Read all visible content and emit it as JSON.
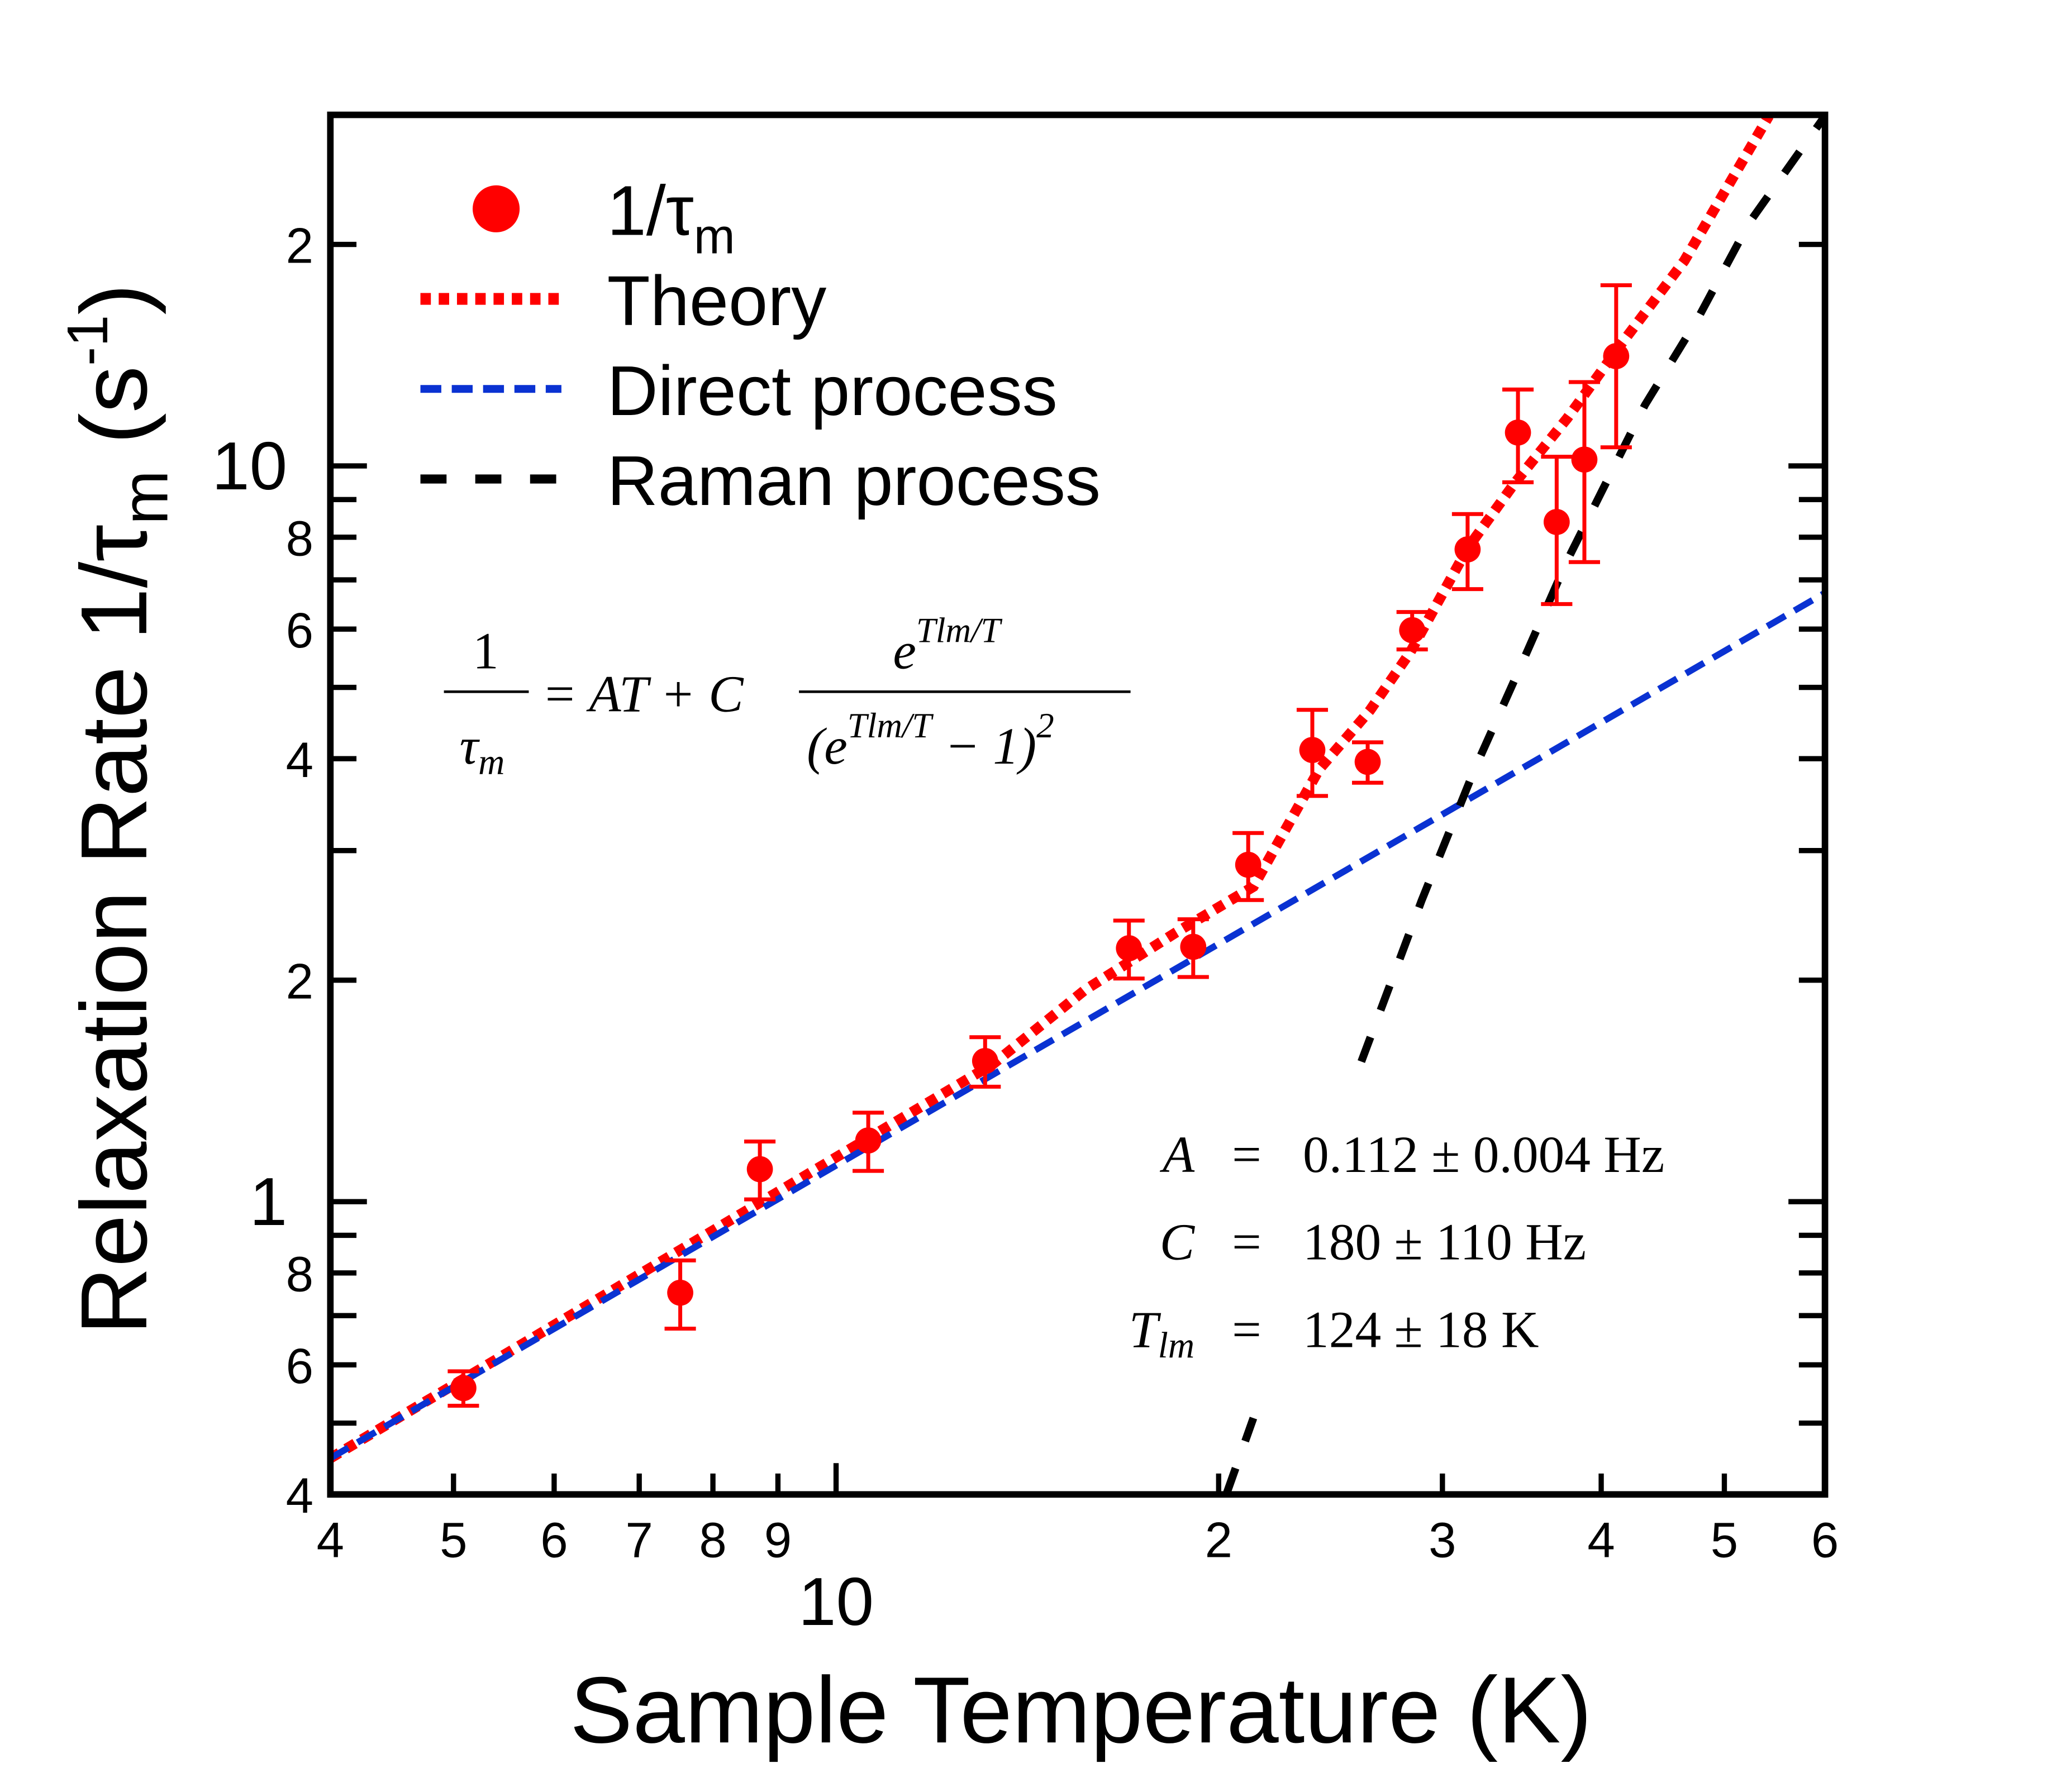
{
  "chart_data": {
    "type": "scatter",
    "xlabel": "Sample Temperature (K)",
    "ylabel": {
      "text": "Relaxation Rate 1/τ",
      "sub": "m",
      "unit": "(s",
      "unit_sup": "-1",
      "unit_end": ")"
    },
    "xscale": "log",
    "yscale": "log",
    "xlim": [
      4,
      60
    ],
    "ylim": [
      0.4,
      30
    ],
    "xticks": [
      4,
      5,
      6,
      7,
      8,
      9,
      10,
      {
        "value": 20,
        "label": "2"
      },
      {
        "value": 30,
        "label": "3"
      },
      {
        "value": 40,
        "label": "4"
      },
      {
        "value": 50,
        "label": "5"
      },
      {
        "value": 60,
        "label": "6"
      }
    ],
    "yticks": [
      {
        "value": 0.4,
        "label": "4"
      },
      {
        "value": 0.6,
        "label": "6"
      },
      {
        "value": 0.8,
        "label": "8"
      },
      1,
      2,
      4,
      6,
      8,
      10,
      {
        "value": 20,
        "label": "2"
      }
    ],
    "yminorticks": [
      0.5,
      0.7,
      0.9,
      3,
      5,
      7,
      9
    ],
    "legend": "upper left",
    "series": [
      {
        "name": "1/τ",
        "name_sub": "m",
        "kind": "points",
        "color": "#ff0000",
        "x": [
          5.09,
          7.54,
          8.71,
          10.6,
          13.1,
          17.0,
          19.1,
          21.1,
          23.7,
          26.2,
          28.4,
          31.4,
          34.4,
          36.9,
          38.8,
          41.1
        ],
        "values": [
          0.558,
          0.752,
          1.107,
          1.211,
          1.553,
          2.21,
          2.22,
          2.87,
          4.11,
          3.96,
          5.98,
          7.7,
          11.1,
          8.39,
          10.2,
          14.1
        ],
        "errors": [
          0.03,
          0.08,
          0.1,
          0.11,
          0.12,
          0.2,
          0.2,
          0.3,
          0.55,
          0.25,
          0.35,
          0.9,
          1.6,
          1.9,
          2.8,
          3.5
        ]
      },
      {
        "name": "Theory",
        "kind": "dotted",
        "color": "#ff0000",
        "x": [
          4,
          13.3,
          15.7,
          18.5,
          21.3,
          24.0,
          26.3,
          28.3,
          31.4,
          34.2,
          37.6,
          41.3,
          46.5,
          54.2
        ],
        "values": [
          0.448,
          1.54,
          1.94,
          2.32,
          2.68,
          3.87,
          4.65,
          5.58,
          7.73,
          9.48,
          11.6,
          14.5,
          19.0,
          29.9
        ]
      },
      {
        "name": "Direct process",
        "kind": "dashed",
        "color": "#0a32d2",
        "x": [
          4,
          60
        ],
        "values": [
          0.448,
          6.72
        ]
      },
      {
        "name": "Raman process",
        "kind": "longdash",
        "color": "#000000",
        "x": [
          20.3,
          21.3,
          null,
          25.9,
          28.9,
          31.8,
          34.6,
          37.6,
          43.3,
          47.6,
          52.3,
          60
        ],
        "values": [
          0.402,
          0.508,
          null,
          1.55,
          2.57,
          3.87,
          5.36,
          7.43,
          12.1,
          15.8,
          21.4,
          29.9
        ]
      }
    ],
    "equation": {
      "numerator": "1",
      "tau": "τ",
      "tau_sub": "m",
      "middle": "= AT + C",
      "exp_base": "e",
      "exponent": "Tlm/T",
      "den_open": "(e",
      "den_close": "− 1)",
      "den_power": "2"
    },
    "parameters": [
      {
        "symbol": "A",
        "equals": "=",
        "value": "0.112 ± 0.004 Hz"
      },
      {
        "symbol": "C",
        "equals": "=",
        "value": "180 ± 110 Hz"
      },
      {
        "symbol": "T",
        "symbol_sub": "lm",
        "equals": "=",
        "value": "124 ± 18 K"
      }
    ]
  }
}
